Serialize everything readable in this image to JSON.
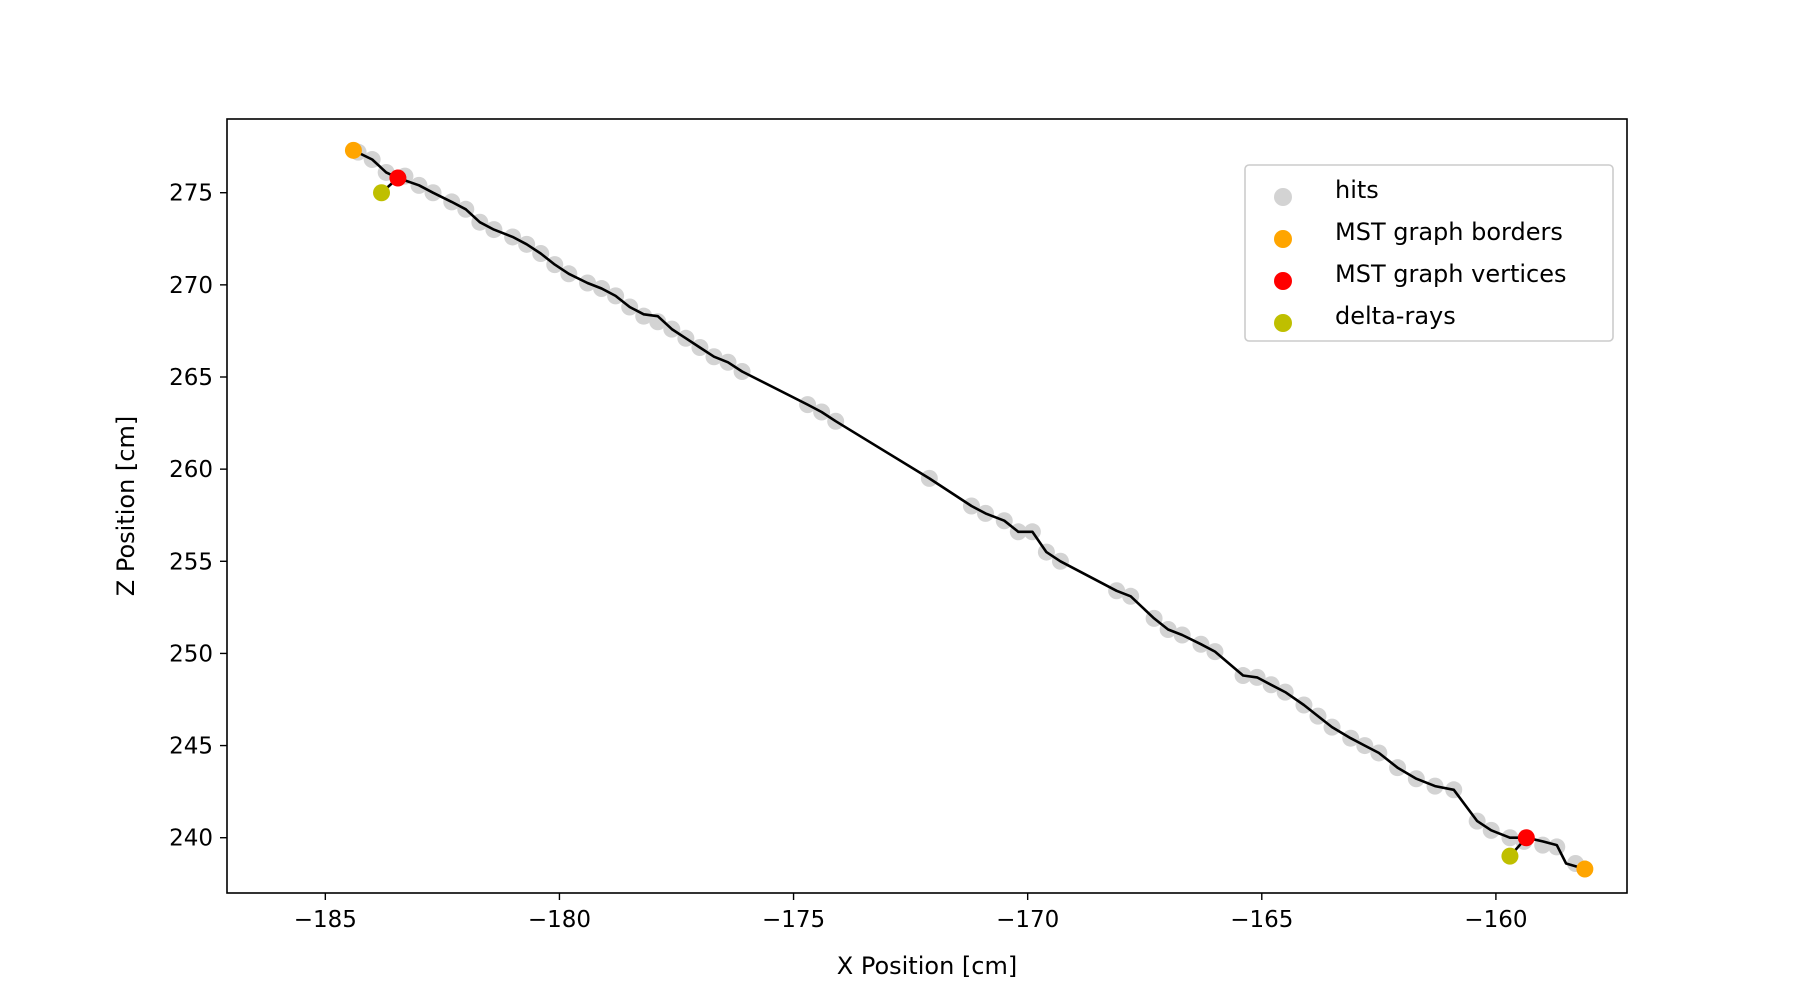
{
  "chart_data": {
    "type": "scatter",
    "xlabel": "X Position [cm]",
    "ylabel": "Z Position [cm]",
    "xlim": [
      -187.1,
      -157.2
    ],
    "ylim": [
      237.0,
      279.0
    ],
    "xticks": [
      -185,
      -180,
      -175,
      -170,
      -165,
      -160
    ],
    "xtick_labels": [
      "−185",
      "−180",
      "−175",
      "−170",
      "−165",
      "−160"
    ],
    "yticks": [
      240,
      245,
      250,
      255,
      260,
      265,
      270,
      275
    ],
    "ytick_labels": [
      "240",
      "245",
      "250",
      "255",
      "260",
      "265",
      "270",
      "275"
    ],
    "grid": false,
    "legend_position": "top-right",
    "series": [
      {
        "name": "hits",
        "kind": "scatter",
        "color": "#d3d3d3",
        "x": [
          -184.3,
          -184.0,
          -183.7,
          -183.3,
          -183.0,
          -182.7,
          -182.3,
          -182.0,
          -181.7,
          -181.4,
          -181.0,
          -180.7,
          -180.4,
          -180.1,
          -179.8,
          -179.4,
          -179.1,
          -178.8,
          -178.5,
          -178.2,
          -177.9,
          -177.6,
          -177.3,
          -177.0,
          -176.7,
          -176.4,
          -176.1,
          -174.7,
          -174.4,
          -174.1,
          -172.1,
          -171.2,
          -170.9,
          -170.5,
          -170.2,
          -169.9,
          -169.6,
          -169.3,
          -168.1,
          -167.8,
          -167.3,
          -167.0,
          -166.7,
          -166.3,
          -166.0,
          -165.4,
          -165.1,
          -164.8,
          -164.5,
          -164.1,
          -163.8,
          -163.5,
          -163.1,
          -162.8,
          -162.5,
          -162.1,
          -161.7,
          -161.3,
          -160.9,
          -160.4,
          -160.1,
          -159.7,
          -159.4,
          -159.0,
          -158.7,
          -158.3
        ],
        "y": [
          277.2,
          276.8,
          276.1,
          275.9,
          275.4,
          275.0,
          274.5,
          274.1,
          273.4,
          273.0,
          272.6,
          272.2,
          271.7,
          271.1,
          270.6,
          270.1,
          269.8,
          269.4,
          268.8,
          268.3,
          268.0,
          267.6,
          267.1,
          266.6,
          266.1,
          265.8,
          265.3,
          263.5,
          263.1,
          262.6,
          259.5,
          258.0,
          257.6,
          257.2,
          256.6,
          256.6,
          255.5,
          255.0,
          253.4,
          253.1,
          251.9,
          251.3,
          251.0,
          250.5,
          250.1,
          248.8,
          248.7,
          248.3,
          247.9,
          247.2,
          246.6,
          246.0,
          245.4,
          245.0,
          244.6,
          243.8,
          243.2,
          242.8,
          242.6,
          240.9,
          240.4,
          240.0,
          239.8,
          239.6,
          239.5,
          238.6
        ]
      },
      {
        "name": "MST graph borders",
        "kind": "scatter",
        "color": "#ffa500",
        "x": [
          -184.4,
          -158.1
        ],
        "y": [
          277.3,
          238.3
        ]
      },
      {
        "name": "MST graph vertices",
        "kind": "scatter",
        "color": "#ff0000",
        "x": [
          -183.45,
          -159.35
        ],
        "y": [
          275.8,
          240.0
        ]
      },
      {
        "name": "delta-rays",
        "kind": "scatter",
        "color": "#bfbf00",
        "x": [
          -183.8,
          -159.7
        ],
        "y": [
          275.0,
          239.0
        ]
      }
    ],
    "line": {
      "color": "#000000",
      "x": [
        -184.4,
        -184.0,
        -183.7,
        -183.45,
        -183.0,
        -182.7,
        -182.3,
        -182.0,
        -181.7,
        -181.4,
        -181.0,
        -180.7,
        -180.4,
        -180.1,
        -179.8,
        -179.4,
        -179.1,
        -178.8,
        -178.5,
        -178.2,
        -177.9,
        -177.6,
        -177.3,
        -177.0,
        -176.7,
        -176.4,
        -176.1,
        -174.7,
        -174.4,
        -174.1,
        -172.1,
        -171.2,
        -170.9,
        -170.5,
        -170.2,
        -169.9,
        -169.6,
        -169.3,
        -168.1,
        -167.8,
        -167.3,
        -167.0,
        -166.7,
        -166.3,
        -166.0,
        -165.4,
        -165.1,
        -164.8,
        -164.5,
        -164.1,
        -163.8,
        -163.5,
        -163.1,
        -162.8,
        -162.5,
        -162.1,
        -161.7,
        -161.3,
        -160.9,
        -160.4,
        -160.1,
        -159.7,
        -159.35,
        -159.0,
        -158.7,
        -158.5,
        -158.1
      ],
      "y": [
        277.3,
        276.8,
        276.1,
        275.8,
        275.4,
        275.0,
        274.5,
        274.1,
        273.4,
        273.0,
        272.6,
        272.2,
        271.7,
        271.1,
        270.6,
        270.1,
        269.8,
        269.4,
        268.8,
        268.4,
        268.3,
        267.6,
        267.1,
        266.6,
        266.1,
        265.8,
        265.3,
        263.5,
        263.1,
        262.6,
        259.5,
        258.0,
        257.6,
        257.2,
        256.6,
        256.6,
        255.5,
        255.0,
        253.4,
        253.1,
        251.9,
        251.3,
        251.0,
        250.5,
        250.1,
        248.8,
        248.7,
        248.3,
        247.9,
        247.2,
        246.6,
        246.0,
        245.4,
        245.0,
        244.6,
        243.8,
        243.2,
        242.8,
        242.6,
        240.9,
        240.4,
        240.0,
        240.0,
        239.8,
        239.6,
        238.6,
        238.3
      ],
      "spurs": [
        {
          "x": [
            -183.45,
            -183.8
          ],
          "y": [
            275.8,
            275.0
          ]
        },
        {
          "x": [
            -159.35,
            -159.7
          ],
          "y": [
            240.0,
            239.0
          ]
        }
      ]
    }
  }
}
